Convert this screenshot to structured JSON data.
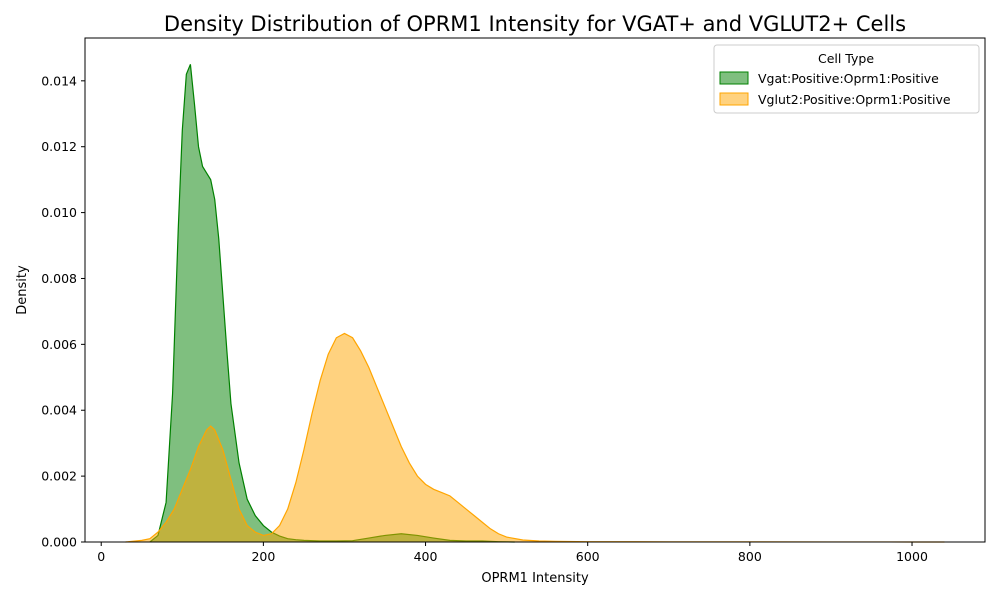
{
  "chart_data": {
    "type": "area",
    "title": "Density Distribution of OPRM1 Intensity for VGAT+ and VGLUT2+ Cells",
    "xlabel": "OPRM1 Intensity",
    "ylabel": "Density",
    "xlim": [
      -20,
      1090
    ],
    "ylim": [
      0,
      0.0153
    ],
    "xticks": [
      0,
      200,
      400,
      600,
      800,
      1000
    ],
    "yticks": [
      0,
      0.002,
      0.004,
      0.006,
      0.008,
      0.01,
      0.012,
      0.014
    ],
    "ytick_labels": [
      "0.000",
      "0.002",
      "0.004",
      "0.006",
      "0.008",
      "0.010",
      "0.012",
      "0.014"
    ],
    "grid": false,
    "legend": {
      "title": "Cell Type",
      "placement": "top-right"
    },
    "series": [
      {
        "name": "Vgat:Positive:Oprm1:Positive",
        "color": "#008000",
        "fill_opacity": 0.5,
        "x": [
          60,
          70,
          80,
          88,
          95,
          100,
          105,
          110,
          115,
          120,
          125,
          130,
          135,
          140,
          145,
          150,
          155,
          160,
          170,
          180,
          190,
          200,
          210,
          220,
          230,
          240,
          250,
          270,
          290,
          310,
          330,
          350,
          370,
          390,
          410,
          430,
          450,
          470,
          490,
          510
        ],
        "values": [
          0.0,
          0.0002,
          0.0012,
          0.0045,
          0.0095,
          0.0125,
          0.0142,
          0.0145,
          0.0133,
          0.012,
          0.0114,
          0.0112,
          0.011,
          0.0104,
          0.0092,
          0.0075,
          0.0058,
          0.0042,
          0.0024,
          0.0013,
          0.0008,
          0.0005,
          0.0003,
          0.00018,
          0.0001,
          7e-05,
          5e-05,
          3e-05,
          3e-05,
          4e-05,
          0.00012,
          0.0002,
          0.00025,
          0.0002,
          0.00012,
          5e-05,
          3e-05,
          3e-05,
          1e-05,
          0.0
        ]
      },
      {
        "name": "Vglut2:Positive:Oprm1:Positive",
        "color": "#FFA500",
        "fill_opacity": 0.5,
        "x": [
          30,
          50,
          60,
          70,
          80,
          90,
          100,
          110,
          120,
          130,
          135,
          140,
          150,
          160,
          170,
          180,
          190,
          200,
          210,
          220,
          230,
          240,
          250,
          260,
          270,
          280,
          290,
          300,
          310,
          320,
          330,
          340,
          350,
          360,
          370,
          380,
          390,
          400,
          410,
          420,
          430,
          440,
          450,
          460,
          470,
          480,
          490,
          500,
          520,
          540,
          560,
          600,
          700,
          800,
          900,
          1000,
          1040
        ],
        "values": [
          0.0,
          5e-05,
          0.0001,
          0.0003,
          0.0006,
          0.001,
          0.0016,
          0.0022,
          0.0029,
          0.0034,
          0.00352,
          0.0034,
          0.0028,
          0.0019,
          0.001,
          0.0005,
          0.0003,
          0.0002,
          0.00025,
          0.0005,
          0.001,
          0.0018,
          0.0028,
          0.0039,
          0.0049,
          0.0057,
          0.0062,
          0.00633,
          0.0062,
          0.0058,
          0.0053,
          0.0047,
          0.0041,
          0.0035,
          0.0029,
          0.0024,
          0.002,
          0.00175,
          0.0016,
          0.0015,
          0.0014,
          0.0012,
          0.001,
          0.0008,
          0.0006,
          0.0004,
          0.00025,
          0.00015,
          6e-05,
          3e-05,
          2e-05,
          1e-05,
          5e-06,
          3e-06,
          2e-06,
          1e-06,
          0.0
        ]
      }
    ]
  }
}
